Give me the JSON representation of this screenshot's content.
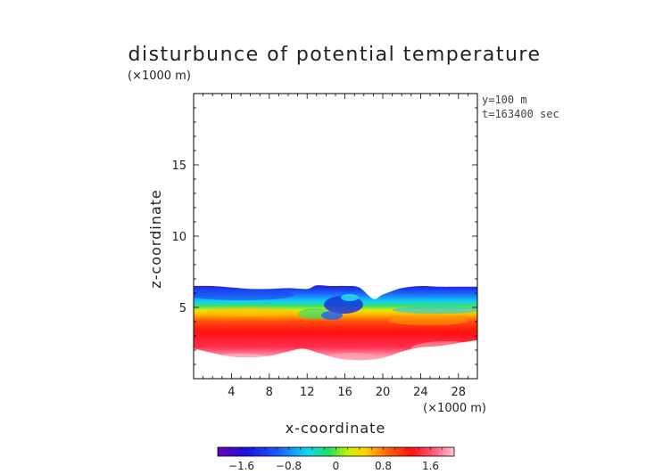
{
  "chart_data": {
    "type": "heatmap",
    "title": "disturbunce of potential temperature",
    "xlabel": "x-coordinate",
    "ylabel": "z-coordinate",
    "x_unit": "(×1000 m)",
    "z_unit": "(×1000 m)",
    "info": [
      "y=100 m",
      "t=163400 sec"
    ],
    "xlim": [
      0,
      30
    ],
    "ylim": [
      0,
      20
    ],
    "x_ticks": [
      4,
      8,
      12,
      16,
      20,
      24,
      28
    ],
    "y_ticks": [
      5,
      10,
      15
    ],
    "colorbar": {
      "ticks": [
        "−1.6",
        "−0.8",
        "0",
        "0.8",
        "1.6"
      ],
      "tick_values": [
        -1.6,
        -0.8,
        0,
        0.8,
        1.6
      ],
      "range": [
        -2.0,
        2.0
      ]
    },
    "field_top_z": [
      [
        0,
        6.5
      ],
      [
        2,
        6.5
      ],
      [
        4,
        6.4
      ],
      [
        6,
        6.3
      ],
      [
        8,
        6.3
      ],
      [
        10,
        6.35
      ],
      [
        12,
        6.3
      ],
      [
        13,
        6.55
      ],
      [
        14.5,
        6.5
      ],
      [
        16,
        6.5
      ],
      [
        17.5,
        6.4
      ],
      [
        19,
        5.6
      ],
      [
        20,
        5.9
      ],
      [
        22,
        6.35
      ],
      [
        24,
        6.5
      ],
      [
        26,
        6.45
      ],
      [
        28,
        6.45
      ],
      [
        30,
        6.45
      ]
    ],
    "field_bottom_z": [
      [
        0,
        2.1
      ],
      [
        1,
        1.95
      ],
      [
        2,
        1.8
      ],
      [
        4,
        1.55
      ],
      [
        6,
        1.5
      ],
      [
        8,
        1.6
      ],
      [
        10,
        1.9
      ],
      [
        11.5,
        2.1
      ],
      [
        13,
        1.85
      ],
      [
        14.5,
        1.55
      ],
      [
        16,
        1.35
      ],
      [
        18,
        1.3
      ],
      [
        20,
        1.45
      ],
      [
        22,
        1.9
      ],
      [
        24,
        2.2
      ],
      [
        26,
        2.3
      ],
      [
        28,
        2.5
      ],
      [
        30,
        2.7
      ]
    ]
  }
}
